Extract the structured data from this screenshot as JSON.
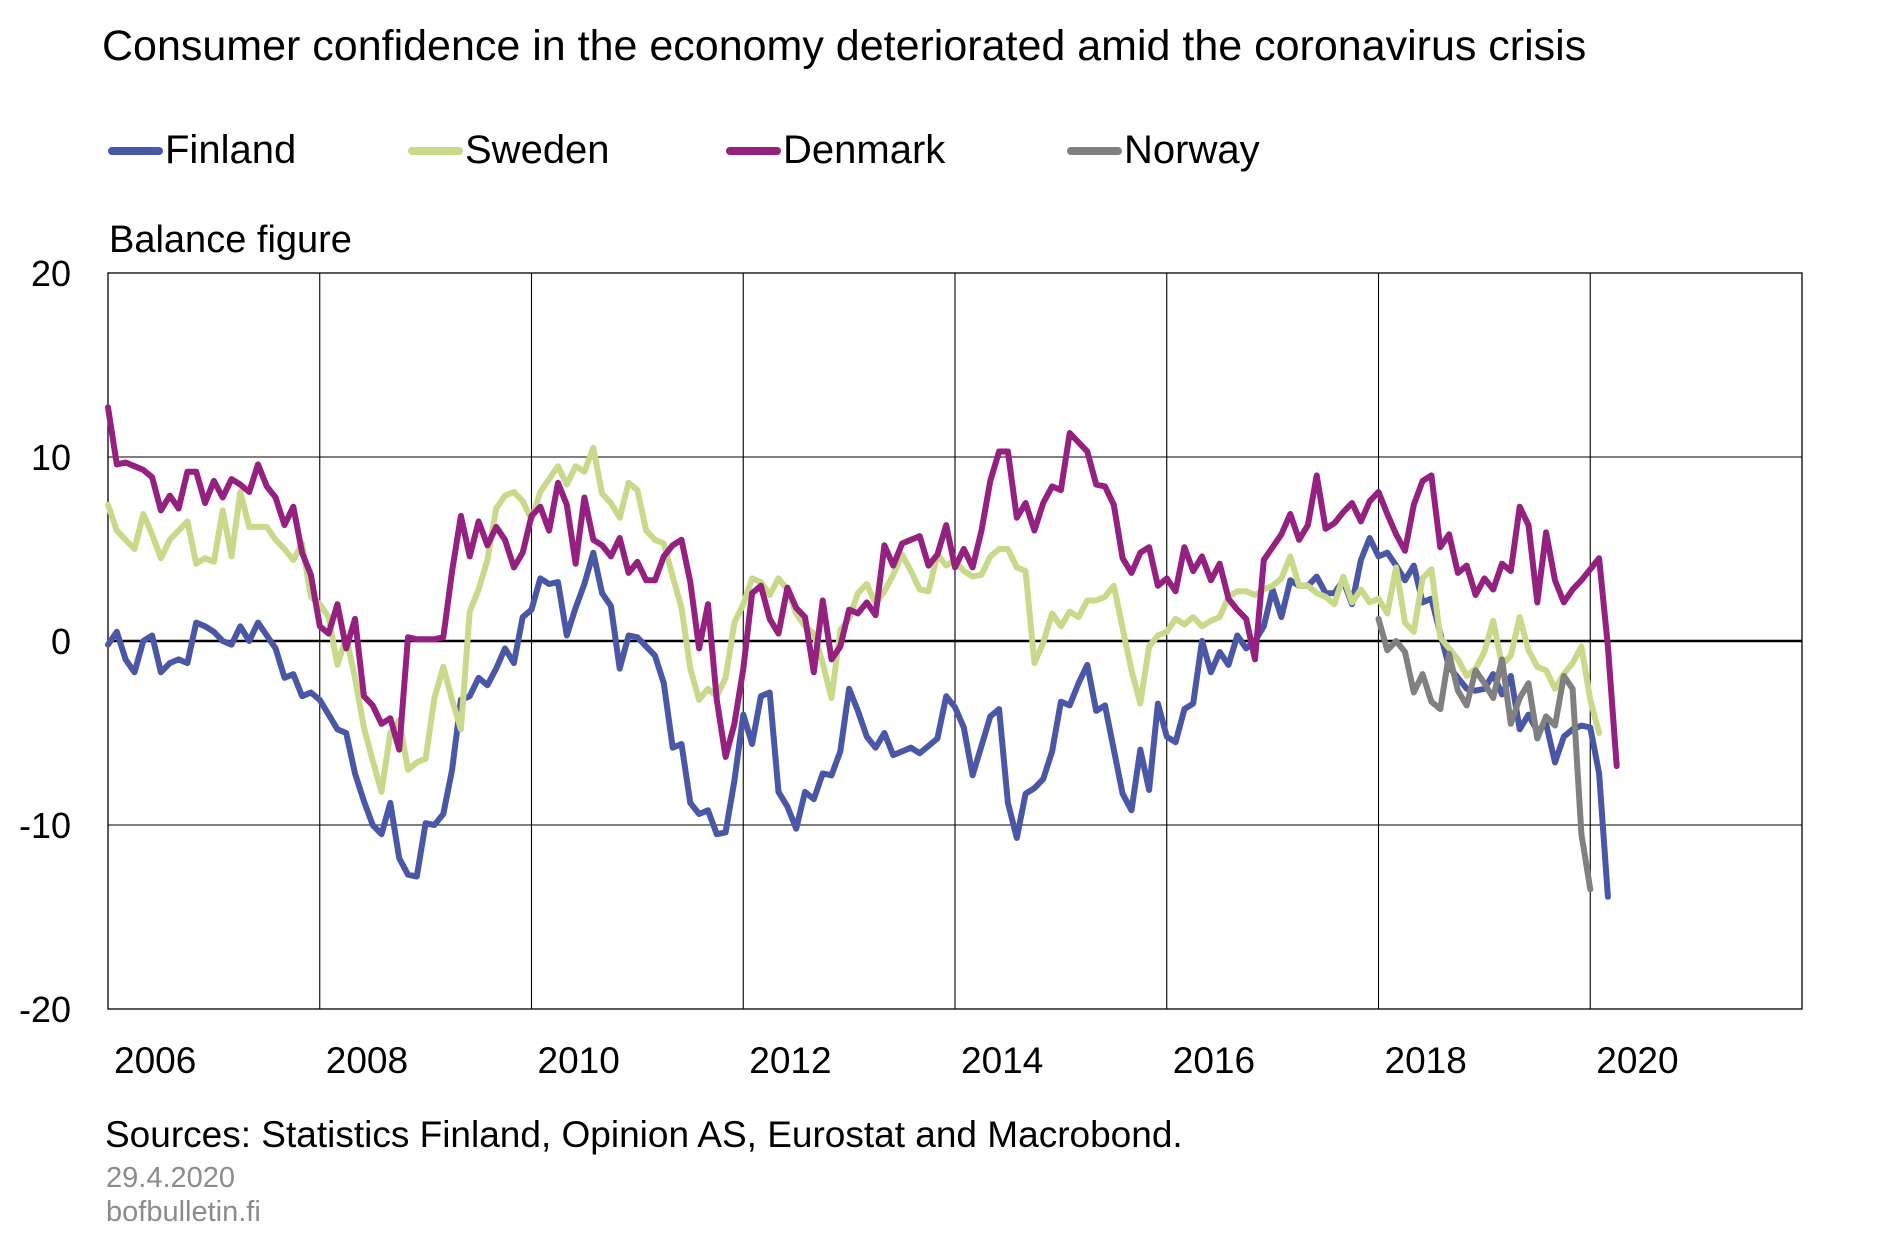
{
  "title": "Consumer confidence in the economy deteriorated amid the coronavirus crisis",
  "legend": [
    {
      "name": "Finland",
      "color": "#4a56a6"
    },
    {
      "name": "Sweden",
      "color": "#c8d98a"
    },
    {
      "name": "Denmark",
      "color": "#94207f"
    },
    {
      "name": "Norway",
      "color": "#808080"
    }
  ],
  "unit_label": "Balance figure",
  "source": "Sources: Statistics Finland, Opinion AS, Eurostat and Macrobond.",
  "date": "29.4.2020",
  "site": "bofbulletin.fi",
  "chart_data": {
    "type": "line",
    "title": "Consumer confidence in the economy deteriorated amid the coronavirus crisis",
    "ylabel": "Balance figure",
    "ylim": [
      -20,
      20
    ],
    "y_ticks": [
      "20",
      "10",
      "0",
      "-10",
      "-20"
    ],
    "y_tick_values": [
      20,
      10,
      0,
      -10,
      -20
    ],
    "x_start": "2006-01",
    "x_end": "2021-12",
    "x_ticks": [
      "2006",
      "2008",
      "2010",
      "2012",
      "2014",
      "2016",
      "2018",
      "2020"
    ],
    "grid": true,
    "legend_position": "top",
    "series": [
      {
        "name": "Finland",
        "color": "#4a56a6",
        "start": "2006-01",
        "values": [
          -0.2,
          0.5,
          -1,
          -1.7,
          0,
          0.3,
          -1.7,
          -1.2,
          -1,
          -1.2,
          1,
          0.8,
          0.5,
          0,
          -0.2,
          0.8,
          0,
          1,
          0.3,
          -0.4,
          -2,
          -1.8,
          -3,
          -2.8,
          -3.2,
          -4,
          -4.8,
          -5,
          -7.2,
          -8.7,
          -10,
          -10.5,
          -8.8,
          -11.8,
          -12.7,
          -12.8,
          -9.9,
          -10,
          -9.4,
          -7,
          -3.2,
          -3,
          -2,
          -2.4,
          -1.5,
          -0.4,
          -1.2,
          1.3,
          1.7,
          3.4,
          3.1,
          3.2,
          0.3,
          1.8,
          3.1,
          4.8,
          2.6,
          1.9,
          -1.5,
          0.3,
          0.2,
          -0.3,
          -0.8,
          -2.3,
          -5.8,
          -5.6,
          -8.8,
          -9.4,
          -9.2,
          -10.5,
          -10.4,
          -7.6,
          -4,
          -5.6,
          -3,
          -2.8,
          -8.2,
          -9,
          -10.2,
          -8.2,
          -8.6,
          -7.2,
          -7.3,
          -6,
          -2.6,
          -3.8,
          -5.2,
          -5.8,
          -5,
          -6.2,
          -6,
          -5.8,
          -6.1,
          -5.7,
          -5.3,
          -3,
          -3.6,
          -4.7,
          -7.3,
          -5.7,
          -4.1,
          -3.7,
          -8.8,
          -10.7,
          -8.3,
          -8,
          -7.5,
          -6,
          -3.3,
          -3.5,
          -2.3,
          -1.3,
          -3.8,
          -3.5,
          -5.9,
          -8.3,
          -9.2,
          -5.9,
          -8.1,
          -3.4,
          -5.2,
          -5.5,
          -3.7,
          -3.4,
          0,
          -1.7,
          -0.6,
          -1.3,
          0.3,
          -0.4,
          0,
          0.8,
          2.8,
          1.3,
          3.3,
          3,
          3,
          3.5,
          2.6,
          2.6,
          3.3,
          2,
          4.4,
          5.6,
          4.6,
          4.8,
          4.1,
          3.3,
          4.1,
          2.1,
          2.3,
          0.4,
          -1.4,
          -2,
          -2.6,
          -2.7,
          -2.6,
          -1.8,
          -2.9,
          -1.9,
          -4.8,
          -4,
          -4.9,
          -4.5,
          -6.6,
          -5.2,
          -4.8,
          -4.6,
          -4.7,
          -7.2,
          -13.9
        ]
      },
      {
        "name": "Sweden",
        "color": "#c8d98a",
        "start": "2006-01",
        "values": [
          7.4,
          6,
          5.5,
          5,
          6.9,
          5.8,
          4.5,
          5.5,
          6,
          6.5,
          4.2,
          4.5,
          4.3,
          7.1,
          4.6,
          8.1,
          6.2,
          6.2,
          6.2,
          5.5,
          5,
          4.4,
          5.3,
          2.4,
          2,
          1.3,
          -1.3,
          0.2,
          -2,
          -4.7,
          -6.5,
          -8.2,
          -5,
          -4.3,
          -7,
          -6.6,
          -6.4,
          -3.1,
          -1.4,
          -3.2,
          -4.8,
          1.6,
          2.8,
          4.4,
          7.2,
          7.9,
          8.1,
          7.6,
          6.6,
          8.1,
          8.8,
          9.5,
          8.5,
          9.5,
          9.2,
          10.5,
          8,
          7.5,
          6.7,
          8.6,
          8.2,
          6,
          5.5,
          5.3,
          3.5,
          1.8,
          -1.5,
          -3.2,
          -2.6,
          -3,
          -2,
          1,
          2,
          3.4,
          3.2,
          2.5,
          3.4,
          2.8,
          1.5,
          0.8,
          0.4,
          -1.2,
          -3.1,
          0.6,
          1.2,
          2.6,
          3.1,
          2,
          2.7,
          3.6,
          4.7,
          3.8,
          2.8,
          2.7,
          4.7,
          4.1,
          4.4,
          3.8,
          3.5,
          3.6,
          4.6,
          5,
          5,
          4,
          3.8,
          -1.2,
          -0.1,
          1.5,
          0.8,
          1.6,
          1.3,
          2.2,
          2.2,
          2.4,
          3,
          0.7,
          -1.6,
          -3.4,
          -0.3,
          0.3,
          0.5,
          1.2,
          0.9,
          1.3,
          0.8,
          1.1,
          1.3,
          2.4,
          2.7,
          2.7,
          2.5,
          2.8,
          3,
          3.4,
          4.6,
          3,
          3,
          2.6,
          2.4,
          2,
          3.5,
          2.1,
          2.8,
          2.1,
          2.3,
          1.5,
          4,
          1,
          0.5,
          3.4,
          3.9,
          0.2,
          -0.4,
          -1,
          -1.9,
          -1.5,
          -0.6,
          1.1,
          -1.3,
          -0.8,
          1.3,
          -0.5,
          -1.4,
          -1.6,
          -2.6,
          -1.8,
          -1.2,
          -0.3,
          -3.2,
          -5
        ]
      },
      {
        "name": "Denmark",
        "color": "#94207f",
        "start": "2006-01",
        "values": [
          12.7,
          9.6,
          9.7,
          9.5,
          9.3,
          8.9,
          7.1,
          7.9,
          7.2,
          9.2,
          9.2,
          7.5,
          8.7,
          7.8,
          8.8,
          8.5,
          8.1,
          9.6,
          8.4,
          7.8,
          6.3,
          7.3,
          4.8,
          3.6,
          0.8,
          0.4,
          2,
          -0.4,
          1.2,
          -3,
          -3.5,
          -4.5,
          -4.2,
          -5.9,
          0.2,
          0.1,
          0.1,
          0.1,
          0.2,
          3.8,
          6.8,
          4.6,
          6.5,
          5.2,
          6.2,
          5.5,
          4,
          4.8,
          6.8,
          7.3,
          6,
          8.6,
          7.4,
          4.2,
          7.8,
          5.5,
          5.2,
          4.6,
          5.6,
          3.7,
          4.3,
          3.3,
          3.3,
          4.6,
          5.2,
          5.5,
          3.2,
          -0.4,
          2,
          -3.2,
          -6.3,
          -4.5,
          -1.5,
          2.6,
          3,
          1.2,
          0.4,
          2.9,
          1.8,
          1.3,
          -1.7,
          2.2,
          -1,
          -0.3,
          1.7,
          1.5,
          2.1,
          1.4,
          5.2,
          4.1,
          5.3,
          5.5,
          5.7,
          4.1,
          4.7,
          6.3,
          4,
          5,
          4,
          6,
          8.7,
          10.3,
          10.3,
          6.7,
          7.5,
          6,
          7.5,
          8.4,
          8.2,
          11.3,
          10.8,
          10.3,
          8.5,
          8.4,
          7.4,
          4.5,
          3.7,
          4.8,
          5.1,
          3,
          3.4,
          2.7,
          5.1,
          3.8,
          4.6,
          3.3,
          4.2,
          2.3,
          1.7,
          1.2,
          -1,
          4.4,
          5.1,
          5.8,
          6.9,
          5.5,
          6.3,
          9,
          6.1,
          6.4,
          7,
          7.5,
          6.5,
          7.6,
          8.1,
          6.9,
          5.8,
          4.9,
          7.4,
          8.7,
          9,
          5.1,
          5.8,
          3.7,
          4.1,
          2.5,
          3.4,
          2.8,
          4.2,
          3.8,
          7.3,
          6.3,
          2.1,
          5.9,
          3.3,
          2.1,
          2.8,
          3.3,
          3.9,
          4.5,
          -0.3,
          -6.8
        ]
      },
      {
        "name": "Norway",
        "color": "#808080",
        "start": "2018-01",
        "values": [
          1.2,
          -0.5,
          0,
          -0.6,
          -2.8,
          -1.8,
          -3.3,
          -3.7,
          -0.7,
          -2.7,
          -3.5,
          -1.6,
          -2.3,
          -3.1,
          -1,
          -4.5,
          -3.1,
          -2.3,
          -5.3,
          -4.1,
          -4.6,
          -1.9,
          -2.6,
          -10.5,
          -13.5
        ]
      }
    ]
  }
}
